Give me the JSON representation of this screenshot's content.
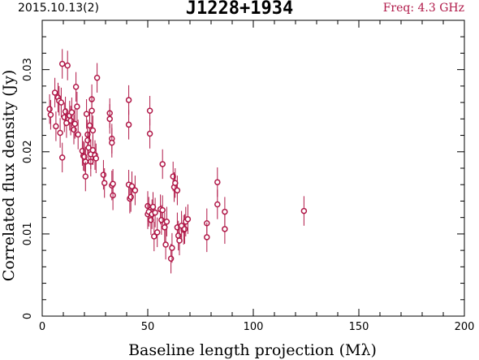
{
  "header": {
    "date": "2015.10.13(2)",
    "source": "J1228+1934",
    "freq": "Freq: 4.3 GHz"
  },
  "colors": {
    "accent": "#b01848",
    "axis": "#000000"
  },
  "chart_data": {
    "type": "scatter",
    "title": "J1228+1934",
    "xlabel": "Baseline length projection (Mλ)",
    "ylabel": "Correlated flux density (Jy)",
    "xlim": [
      0,
      200
    ],
    "ylim": [
      0,
      0.036
    ],
    "xticks": [
      0,
      50,
      100,
      150,
      200
    ],
    "xtick_labels": [
      "0",
      "50",
      "100",
      "150",
      "200"
    ],
    "yticks": [
      0,
      0.01,
      0.02,
      0.03
    ],
    "ytick_labels": [
      "0",
      "0.01",
      "0.02",
      "0.03"
    ],
    "grid": false,
    "error_bar": 0.0018,
    "points": [
      [
        3.5,
        0.0252
      ],
      [
        4,
        0.0245
      ],
      [
        6,
        0.0272
      ],
      [
        6.5,
        0.0231
      ],
      [
        7.5,
        0.0266
      ],
      [
        8,
        0.0262
      ],
      [
        8.5,
        0.0223
      ],
      [
        9,
        0.026
      ],
      [
        9.5,
        0.0307
      ],
      [
        9.5,
        0.0193
      ],
      [
        10.5,
        0.0242
      ],
      [
        11,
        0.0249
      ],
      [
        11.5,
        0.0235
      ],
      [
        12,
        0.0305
      ],
      [
        13,
        0.0244
      ],
      [
        13.5,
        0.0238
      ],
      [
        14,
        0.0248
      ],
      [
        15,
        0.0227
      ],
      [
        15.5,
        0.0234
      ],
      [
        16,
        0.0279
      ],
      [
        16.5,
        0.0255
      ],
      [
        17,
        0.0221
      ],
      [
        19,
        0.0201
      ],
      [
        19.5,
        0.0195
      ],
      [
        20,
        0.0194
      ],
      [
        20.5,
        0.0188
      ],
      [
        20.5,
        0.017
      ],
      [
        21,
        0.0246
      ],
      [
        21.5,
        0.0221
      ],
      [
        21.5,
        0.0214
      ],
      [
        22,
        0.0205
      ],
      [
        22.5,
        0.0232
      ],
      [
        23,
        0.0188
      ],
      [
        23,
        0.0197
      ],
      [
        23.5,
        0.0264
      ],
      [
        23.5,
        0.025
      ],
      [
        24,
        0.0226
      ],
      [
        24,
        0.0202
      ],
      [
        25,
        0.0196
      ],
      [
        26,
        0.029
      ],
      [
        25.5,
        0.0192
      ],
      [
        29,
        0.0172
      ],
      [
        29.5,
        0.0162
      ],
      [
        32,
        0.0247
      ],
      [
        32,
        0.024
      ],
      [
        33,
        0.0216
      ],
      [
        33,
        0.0211
      ],
      [
        33,
        0.0159
      ],
      [
        33.5,
        0.0147
      ],
      [
        33.5,
        0.0161
      ],
      [
        41,
        0.0263
      ],
      [
        41,
        0.0233
      ],
      [
        41,
        0.016
      ],
      [
        41.5,
        0.0143
      ],
      [
        42,
        0.0145
      ],
      [
        42.5,
        0.0158
      ],
      [
        44,
        0.0153
      ],
      [
        50,
        0.0134
      ],
      [
        50,
        0.0124
      ],
      [
        50.5,
        0.0127
      ],
      [
        51,
        0.025
      ],
      [
        51,
        0.0222
      ],
      [
        51.5,
        0.0117
      ],
      [
        52,
        0.0124
      ],
      [
        52.5,
        0.0133
      ],
      [
        53,
        0.0097
      ],
      [
        53.5,
        0.0126
      ],
      [
        54.5,
        0.0102
      ],
      [
        56,
        0.013
      ],
      [
        56.5,
        0.0117
      ],
      [
        57,
        0.0185
      ],
      [
        57,
        0.0129
      ],
      [
        58,
        0.0108
      ],
      [
        58.5,
        0.0087
      ],
      [
        59,
        0.0115
      ],
      [
        61,
        0.007
      ],
      [
        61.5,
        0.0083
      ],
      [
        62,
        0.017
      ],
      [
        62.5,
        0.0157
      ],
      [
        63,
        0.0162
      ],
      [
        64,
        0.0153
      ],
      [
        64,
        0.0108
      ],
      [
        64.5,
        0.0098
      ],
      [
        65,
        0.0092
      ],
      [
        66,
        0.011
      ],
      [
        67,
        0.0105
      ],
      [
        67.5,
        0.0106
      ],
      [
        68,
        0.0115
      ],
      [
        69,
        0.0118
      ],
      [
        78,
        0.0113
      ],
      [
        78,
        0.0096
      ],
      [
        83,
        0.0163
      ],
      [
        83,
        0.0136
      ],
      [
        86.5,
        0.0127
      ],
      [
        86.5,
        0.0106
      ],
      [
        124,
        0.0128
      ]
    ]
  }
}
